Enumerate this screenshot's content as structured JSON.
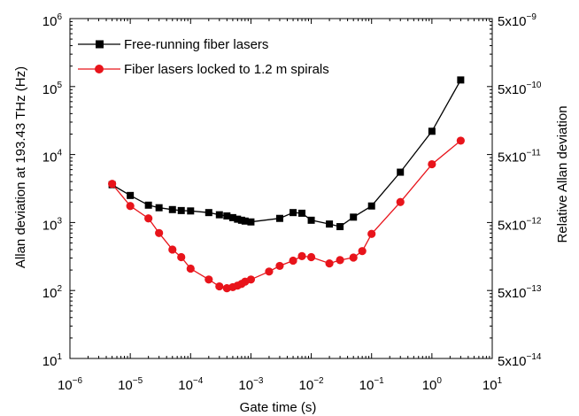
{
  "chart_data": {
    "type": "line",
    "xlabel": "Gate time (s)",
    "ylabel_left": "Allan deviation at 193.43 THz (Hz)",
    "ylabel_right": "Relative Allan deviation",
    "xscale": "log",
    "yscale": "log",
    "xlim": [
      1e-06,
      10
    ],
    "ylim": [
      10,
      1000000
    ],
    "grid": false,
    "legend_position": "top-left",
    "x_ticks": [
      {
        "value": 1e-06,
        "base": "10",
        "exp": "−6"
      },
      {
        "value": 1e-05,
        "base": "10",
        "exp": "−5"
      },
      {
        "value": 0.0001,
        "base": "10",
        "exp": "−4"
      },
      {
        "value": 0.001,
        "base": "10",
        "exp": "−3"
      },
      {
        "value": 0.01,
        "base": "10",
        "exp": "−2"
      },
      {
        "value": 0.1,
        "base": "10",
        "exp": "−1"
      },
      {
        "value": 1,
        "base": "10",
        "exp": "0"
      },
      {
        "value": 10,
        "base": "10",
        "exp": "1"
      }
    ],
    "y_ticks_left": [
      {
        "value": 10,
        "base": "10",
        "exp": "1"
      },
      {
        "value": 100,
        "base": "10",
        "exp": "2"
      },
      {
        "value": 1000,
        "base": "10",
        "exp": "3"
      },
      {
        "value": 10000,
        "base": "10",
        "exp": "4"
      },
      {
        "value": 100000,
        "base": "10",
        "exp": "5"
      },
      {
        "value": 1000000,
        "base": "10",
        "exp": "6"
      }
    ],
    "y_ticks_right": [
      {
        "value": 10,
        "base": "5x10",
        "exp": "−14"
      },
      {
        "value": 100,
        "base": "5x10",
        "exp": "−13"
      },
      {
        "value": 1000,
        "base": "5x10",
        "exp": "−12"
      },
      {
        "value": 10000,
        "base": "5x10",
        "exp": "−11"
      },
      {
        "value": 100000,
        "base": "5x10",
        "exp": "−10"
      },
      {
        "value": 1000000,
        "base": "5x10",
        "exp": "−9"
      }
    ],
    "series": [
      {
        "name": "Free-running fiber lasers",
        "color": "#000000",
        "marker": "square",
        "x": [
          5e-06,
          1e-05,
          2e-05,
          3e-05,
          5e-05,
          7e-05,
          0.0001,
          0.0002,
          0.0003,
          0.0004,
          0.0005,
          0.0006,
          0.0007,
          0.0008,
          0.001,
          0.003,
          0.005,
          0.007,
          0.01,
          0.02,
          0.03,
          0.05,
          0.1,
          0.3,
          1,
          3
        ],
        "y": [
          3600,
          2500,
          1800,
          1650,
          1550,
          1500,
          1480,
          1400,
          1300,
          1250,
          1180,
          1120,
          1080,
          1050,
          1020,
          1150,
          1400,
          1370,
          1080,
          950,
          870,
          1200,
          1750,
          5500,
          22000,
          125000
        ]
      },
      {
        "name": "Fiber lasers locked to 1.2 m spirals",
        "color": "#e8141b",
        "marker": "circle",
        "x": [
          5e-06,
          1e-05,
          2e-05,
          3e-05,
          5e-05,
          7e-05,
          0.0001,
          0.0002,
          0.0003,
          0.0004,
          0.0005,
          0.0006,
          0.0007,
          0.0008,
          0.001,
          0.002,
          0.003,
          0.005,
          0.007,
          0.01,
          0.02,
          0.03,
          0.05,
          0.07,
          0.1,
          0.3,
          1,
          3
        ],
        "y": [
          3700,
          1750,
          1150,
          700,
          400,
          310,
          210,
          145,
          115,
          108,
          112,
          118,
          125,
          135,
          145,
          190,
          230,
          275,
          320,
          310,
          250,
          280,
          305,
          380,
          680,
          2000,
          7200,
          16000
        ]
      }
    ]
  }
}
